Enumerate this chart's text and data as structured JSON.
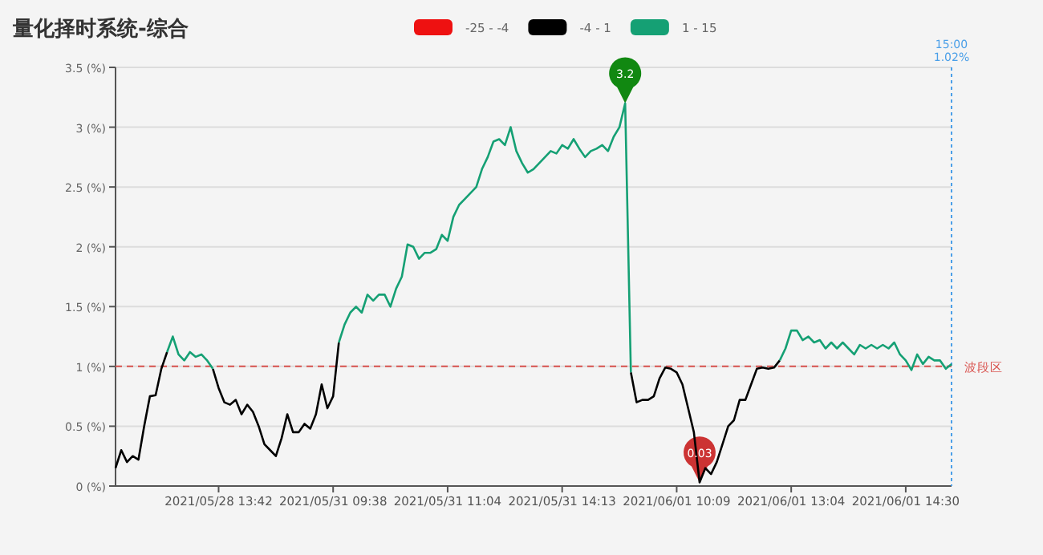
{
  "chart_data": {
    "type": "line",
    "title": "量化择时系统-综合",
    "categories": [
      null,
      null,
      null,
      null,
      null,
      null,
      null,
      null,
      null,
      null,
      null,
      null,
      null,
      null,
      null,
      null,
      null,
      null,
      "2021/05/28 13:42",
      null,
      null,
      null,
      null,
      null,
      null,
      null,
      null,
      null,
      null,
      null,
      null,
      null,
      null,
      null,
      null,
      null,
      null,
      null,
      "2021/05/31 09:38",
      null,
      null,
      null,
      null,
      null,
      null,
      null,
      null,
      null,
      null,
      null,
      null,
      null,
      null,
      null,
      null,
      null,
      null,
      null,
      "2021/05/31 11:04",
      null,
      null,
      null,
      null,
      null,
      null,
      null,
      null,
      null,
      null,
      null,
      null,
      null,
      null,
      null,
      null,
      null,
      null,
      null,
      "2021/05/31 14:13",
      null,
      null,
      null,
      null,
      null,
      null,
      null,
      null,
      null,
      null,
      null,
      null,
      null,
      null,
      null,
      null,
      null,
      null,
      null,
      "2021/06/01 10:09",
      null,
      null,
      null,
      null,
      null,
      null,
      null,
      null,
      null,
      null,
      null,
      null,
      null,
      null,
      null,
      null,
      null,
      null,
      null,
      "2021/06/01 13:04",
      null,
      null,
      null,
      null,
      null,
      null,
      null,
      null,
      null,
      null,
      null,
      null,
      null,
      null,
      null,
      null,
      null,
      null,
      null,
      "2021/06/01 14:30",
      null,
      null,
      null,
      null,
      null,
      null,
      null,
      null
    ],
    "series": [
      {
        "name": "-25 - -4",
        "color": "#ee1111",
        "values": [
          null,
          null,
          null,
          null,
          null,
          null,
          null,
          null,
          null,
          null,
          null,
          null,
          null,
          null,
          null,
          null,
          null,
          null,
          null,
          null,
          null,
          null,
          null,
          null,
          null,
          null,
          null,
          null,
          null,
          null,
          null,
          null,
          null,
          null,
          null,
          null,
          null,
          null,
          null,
          null,
          null,
          null,
          null,
          null,
          null,
          null,
          null,
          null,
          null,
          null,
          null,
          null,
          null,
          null,
          null,
          null,
          null,
          null,
          null,
          null,
          null,
          null,
          null,
          null,
          null,
          null,
          null,
          null,
          null,
          null,
          null,
          null,
          null,
          null,
          null,
          null,
          null,
          null,
          null,
          null,
          null,
          null,
          null,
          null,
          null,
          null,
          null,
          null,
          null,
          null,
          null,
          null,
          null,
          null,
          null,
          null,
          null,
          null,
          null,
          null,
          null,
          null,
          null,
          null,
          null,
          null,
          null,
          null,
          null,
          null,
          null,
          null,
          null,
          null,
          null,
          null,
          null,
          null,
          null,
          null,
          null,
          null,
          null,
          null,
          null,
          null,
          null,
          null,
          null,
          null,
          null,
          null,
          null,
          null,
          null,
          null,
          null,
          null,
          null,
          null,
          null,
          null,
          null,
          null,
          null,
          null,
          null
        ]
      },
      {
        "name": "-4 - 1",
        "color": "#000000",
        "values": [
          0.15,
          0.3,
          0.2,
          0.25,
          0.22,
          0.5,
          0.75,
          0.76,
          0.98,
          1.12,
          null,
          null,
          null,
          null,
          null,
          null,
          null,
          0.98,
          0.82,
          0.7,
          0.68,
          0.72,
          0.6,
          0.68,
          0.62,
          0.5,
          0.35,
          0.3,
          0.25,
          0.4,
          0.6,
          0.45,
          0.45,
          0.52,
          0.48,
          0.6,
          0.85,
          0.65,
          0.75,
          1.2,
          null,
          null,
          null,
          null,
          null,
          null,
          null,
          null,
          null,
          null,
          null,
          null,
          null,
          null,
          null,
          null,
          null,
          null,
          null,
          null,
          null,
          null,
          null,
          null,
          null,
          null,
          null,
          null,
          null,
          null,
          null,
          null,
          null,
          null,
          null,
          null,
          null,
          null,
          null,
          null,
          null,
          null,
          null,
          null,
          null,
          null,
          null,
          null,
          null,
          null,
          0.95,
          0.7,
          0.72,
          0.72,
          0.75,
          0.9,
          0.99,
          0.98,
          0.95,
          0.85,
          0.65,
          0.45,
          0.03,
          0.15,
          0.1,
          0.2,
          0.35,
          0.5,
          0.55,
          0.72,
          0.72,
          0.85,
          0.98,
          0.99,
          0.98,
          0.99,
          1.05,
          null,
          null,
          null,
          null,
          null,
          null,
          null,
          null,
          null,
          null,
          null,
          null,
          null,
          null,
          null,
          null,
          null,
          null,
          null,
          null,
          null,
          null,
          null,
          null,
          null,
          null,
          null,
          null,
          null,
          null
        ]
      },
      {
        "name": "1 - 15",
        "color": "#15a074",
        "values": [
          null,
          null,
          null,
          null,
          null,
          null,
          null,
          null,
          null,
          1.12,
          1.25,
          1.1,
          1.05,
          1.12,
          1.08,
          1.1,
          1.05,
          0.98,
          null,
          null,
          null,
          null,
          null,
          null,
          null,
          null,
          null,
          null,
          null,
          null,
          null,
          null,
          null,
          null,
          null,
          null,
          null,
          null,
          null,
          1.2,
          1.35,
          1.45,
          1.5,
          1.45,
          1.6,
          1.55,
          1.6,
          1.6,
          1.5,
          1.65,
          1.75,
          2.02,
          2.0,
          1.9,
          1.95,
          1.95,
          1.98,
          2.1,
          2.05,
          2.25,
          2.35,
          2.4,
          2.45,
          2.5,
          2.65,
          2.75,
          2.88,
          2.9,
          2.85,
          3.0,
          2.8,
          2.7,
          2.62,
          2.65,
          2.7,
          2.75,
          2.8,
          2.78,
          2.85,
          2.82,
          2.9,
          2.82,
          2.75,
          2.8,
          2.82,
          2.85,
          2.8,
          2.92,
          3.0,
          3.2,
          0.95,
          null,
          null,
          null,
          null,
          null,
          null,
          null,
          null,
          null,
          null,
          null,
          null,
          null,
          null,
          null,
          null,
          null,
          null,
          null,
          null,
          null,
          null,
          null,
          null,
          null,
          1.05,
          1.15,
          1.3,
          1.3,
          1.22,
          1.25,
          1.2,
          1.22,
          1.15,
          1.2,
          1.15,
          1.2,
          1.15,
          1.1,
          1.18,
          1.15,
          1.18,
          1.15,
          1.18,
          1.15,
          1.2,
          1.1,
          1.05,
          0.97,
          1.1,
          1.02,
          1.08,
          1.05,
          1.05,
          0.98,
          1.02
        ]
      }
    ],
    "ylim": [
      0,
      3.5
    ],
    "yticks": [
      {
        "value": 0,
        "label": "0 (%)"
      },
      {
        "value": 0.5,
        "label": "0.5 (%)"
      },
      {
        "value": 1,
        "label": "1 (%)"
      },
      {
        "value": 1.5,
        "label": "1.5 (%)"
      },
      {
        "value": 2,
        "label": "2 (%)"
      },
      {
        "value": 2.5,
        "label": "2.5 (%)"
      },
      {
        "value": 3,
        "label": "3 (%)"
      },
      {
        "value": 3.5,
        "label": "3.5 (%)"
      }
    ],
    "grid": "y",
    "legend": "top",
    "marker": "none",
    "line_style": "solid",
    "ref_lines": [
      {
        "axis": "y",
        "value": 1,
        "label": "波段区",
        "color": "#d9534f",
        "line_style": "dashed"
      }
    ],
    "annotations": [
      {
        "text": "3.2",
        "y": 3.2
      },
      {
        "text": "0.03",
        "y": 0.03
      },
      "15:00",
      "1.02%"
    ]
  }
}
